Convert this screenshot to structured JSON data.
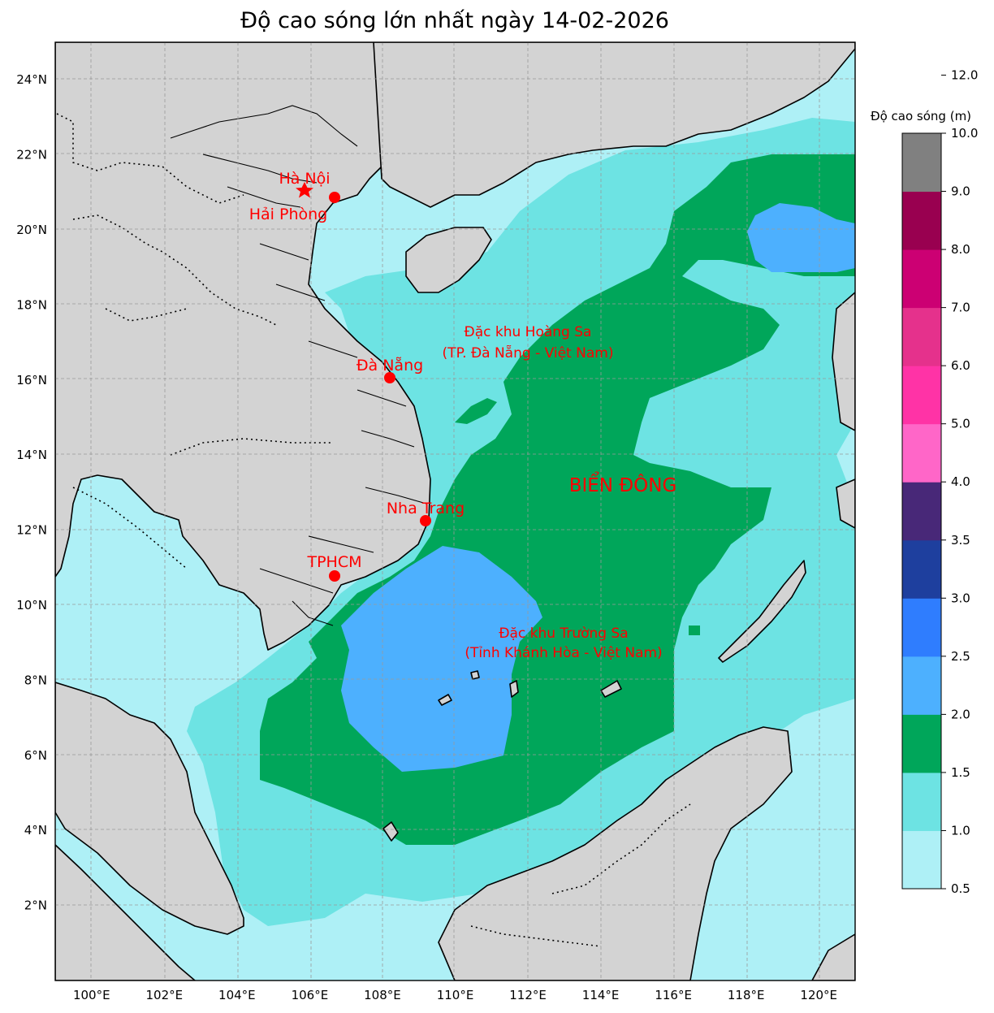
{
  "title": "Độ cao sóng lớn nhất ngày 14-02-2026",
  "colorbar": {
    "title": "Độ cao sóng (m)",
    "ticks": [
      "0.5",
      "1.0",
      "1.5",
      "2.0",
      "2.5",
      "3.0",
      "3.5",
      "4.0",
      "5.0",
      "6.0",
      "7.0",
      "8.0",
      "9.0",
      "10.0",
      "12.0"
    ],
    "colors": [
      "#aef0f6",
      "#6de3e3",
      "#00a65a",
      "#4db0fe",
      "#2f7dfe",
      "#1e3f9e",
      "#482878",
      "#ff66c8",
      "#ff33a6",
      "#e5318c",
      "#cc0073",
      "#990050",
      "#808080"
    ]
  },
  "axes": {
    "lon_labels": [
      "100°E",
      "102°E",
      "104°E",
      "106°E",
      "108°E",
      "110°E",
      "112°E",
      "114°E",
      "116°E",
      "118°E",
      "120°E"
    ],
    "lat_labels": [
      "24°N",
      "22°N",
      "20°N",
      "18°N",
      "16°N",
      "14°N",
      "12°N",
      "10°N",
      "8°N",
      "6°N",
      "4°N",
      "2°N"
    ],
    "lon_range": [
      99,
      121
    ],
    "lat_range": [
      0,
      25
    ]
  },
  "places": {
    "hanoi": "Hà Nội",
    "haiphong": "Hải Phòng",
    "danang": "Đà Nẵng",
    "nhatrang": "Nha Trang",
    "tphcm": "TPHCM",
    "hoangsa_1": "Đặc khu Hoàng Sa",
    "hoangsa_2": "(TP. Đà Nẵng - Việt Nam)",
    "truongsa_1": "Đặc khu Trường Sa",
    "truongsa_2": "(Tỉnh Khánh Hòa - Việt Nam)",
    "sea": "BIỂN ĐÔNG"
  },
  "colors": {
    "land": "#d3d3d3",
    "label": "#ff0000",
    "grid": "#999999"
  }
}
